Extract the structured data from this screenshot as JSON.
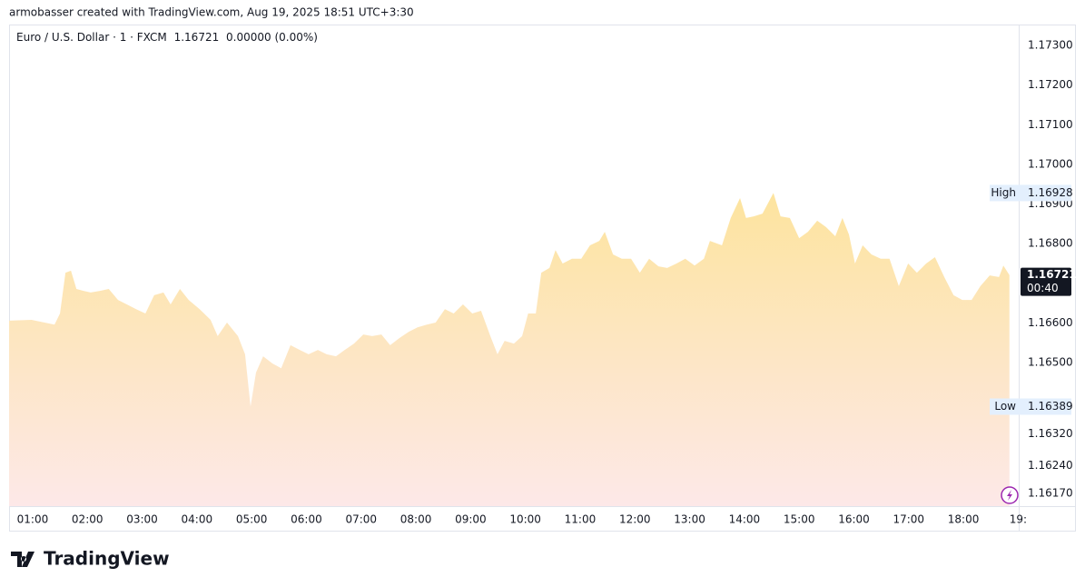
{
  "header": "armobasser created with TradingView.com, Aug 19, 2025 18:51 UTC+3:30",
  "logo": "TradingView",
  "chart_data": {
    "type": "area",
    "symbol": "Euro / U.S. Dollar · 1 · FXCM",
    "last_price": 1.16721,
    "change": "0.00000 (0.00%)",
    "countdown": "00:40",
    "high_label": "High",
    "high": 1.16928,
    "low_label": "Low",
    "low": 1.16389,
    "x": [
      0.57,
      0.98,
      1.4,
      1.5,
      1.6,
      1.7,
      1.8,
      1.93,
      2.06,
      2.23,
      2.39,
      2.56,
      2.72,
      2.89,
      3.06,
      3.22,
      3.39,
      3.52,
      3.69,
      3.85,
      4.05,
      4.25,
      4.38,
      4.55,
      4.75,
      4.88,
      4.98,
      5.08,
      5.21,
      5.38,
      5.54,
      5.71,
      5.88,
      6.04,
      6.21,
      6.37,
      6.54,
      6.7,
      6.87,
      7.04,
      7.2,
      7.37,
      7.53,
      7.7,
      7.87,
      8.03,
      8.2,
      8.36,
      8.53,
      8.69,
      8.86,
      9.03,
      9.19,
      9.36,
      9.49,
      9.62,
      9.79,
      9.94,
      10.05,
      10.19,
      10.29,
      10.44,
      10.55,
      10.68,
      10.85,
      11.02,
      11.18,
      11.35,
      11.45,
      11.6,
      11.76,
      11.93,
      12.09,
      12.26,
      12.43,
      12.59,
      12.76,
      12.92,
      13.09,
      13.26,
      13.37,
      13.59,
      13.75,
      13.92,
      14.03,
      14.17,
      14.33,
      14.53,
      14.66,
      14.83,
      15.0,
      15.16,
      15.33,
      15.49,
      15.66,
      15.79,
      15.91,
      16.02,
      16.16,
      16.32,
      16.49,
      16.65,
      16.82,
      16.99,
      17.15,
      17.32,
      17.48,
      17.65,
      17.82,
      17.98,
      18.15,
      18.31,
      18.48,
      18.65,
      18.73,
      18.84
    ],
    "series": [
      {
        "color": "#fde49e",
        "color_bottom": "#fde8e8",
        "values": [
          1.16606,
          1.16608,
          1.16596,
          1.16624,
          1.16727,
          1.16732,
          1.16686,
          1.16681,
          1.16677,
          1.16681,
          1.16686,
          1.16658,
          1.16647,
          1.16635,
          1.16624,
          1.1667,
          1.16677,
          1.16647,
          1.16686,
          1.16658,
          1.16635,
          1.16608,
          1.16567,
          1.16601,
          1.16567,
          1.16521,
          1.16389,
          1.16475,
          1.16516,
          1.16498,
          1.16486,
          1.16544,
          1.16532,
          1.16521,
          1.16532,
          1.16521,
          1.16516,
          1.16532,
          1.16548,
          1.16571,
          1.16567,
          1.16571,
          1.16544,
          1.16562,
          1.16578,
          1.16589,
          1.16596,
          1.16601,
          1.16635,
          1.16624,
          1.16647,
          1.16624,
          1.16631,
          1.16567,
          1.16521,
          1.16555,
          1.16548,
          1.16567,
          1.16624,
          1.16624,
          1.16727,
          1.16739,
          1.16784,
          1.1675,
          1.16762,
          1.16762,
          1.16796,
          1.16807,
          1.1683,
          1.16773,
          1.16762,
          1.16762,
          1.16727,
          1.16762,
          1.16743,
          1.16739,
          1.1675,
          1.16762,
          1.16745,
          1.16762,
          1.16807,
          1.16796,
          1.16865,
          1.16915,
          1.16865,
          1.16869,
          1.16876,
          1.16928,
          1.16869,
          1.16865,
          1.16814,
          1.1683,
          1.16858,
          1.16842,
          1.16819,
          1.16865,
          1.16823,
          1.1675,
          1.16796,
          1.16773,
          1.16762,
          1.16762,
          1.16693,
          1.1675,
          1.16727,
          1.1675,
          1.16766,
          1.16716,
          1.1667,
          1.16658,
          1.16658,
          1.16693,
          1.1672,
          1.16716,
          1.16745,
          1.16721
        ]
      }
    ],
    "xlim": [
      0.57,
      19.01
    ],
    "xticks": [
      {
        "value": 1,
        "label": "01:00"
      },
      {
        "value": 2,
        "label": "02:00"
      },
      {
        "value": 3,
        "label": "03:00"
      },
      {
        "value": 4,
        "label": "04:00"
      },
      {
        "value": 5,
        "label": "05:00"
      },
      {
        "value": 6,
        "label": "06:00"
      },
      {
        "value": 7,
        "label": "07:00"
      },
      {
        "value": 8,
        "label": "08:00"
      },
      {
        "value": 9,
        "label": "09:00"
      },
      {
        "value": 10,
        "label": "10:00"
      },
      {
        "value": 11,
        "label": "11:00"
      },
      {
        "value": 12,
        "label": "12:00"
      },
      {
        "value": 13,
        "label": "13:00"
      },
      {
        "value": 14,
        "label": "14:00"
      },
      {
        "value": 15,
        "label": "15:00"
      },
      {
        "value": 16,
        "label": "16:00"
      },
      {
        "value": 17,
        "label": "17:00"
      },
      {
        "value": 18,
        "label": "18:00"
      },
      {
        "value": 19,
        "label": "19:"
      }
    ],
    "ylim": [
      1.16138,
      1.17353
    ],
    "yticks": [
      {
        "value": 1.173,
        "label": "1.17300"
      },
      {
        "value": 1.172,
        "label": "1.17200"
      },
      {
        "value": 1.171,
        "label": "1.17100"
      },
      {
        "value": 1.17,
        "label": "1.17000"
      },
      {
        "value": 1.169,
        "label": "1.16900"
      },
      {
        "value": 1.168,
        "label": "1.16800"
      },
      {
        "value": 1.166,
        "label": "1.16600"
      },
      {
        "value": 1.165,
        "label": "1.16500"
      },
      {
        "value": 1.1632,
        "label": "1.16320"
      },
      {
        "value": 1.1624,
        "label": "1.16240"
      },
      {
        "value": 1.1617,
        "label": "1.16170"
      }
    ],
    "grid": false
  }
}
